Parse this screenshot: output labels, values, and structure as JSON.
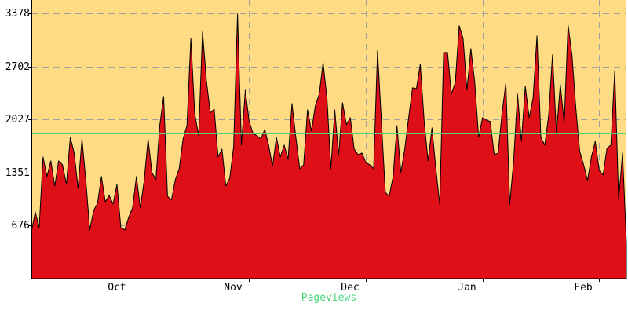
{
  "chart_data": {
    "type": "area",
    "xlabel": "Pageviews",
    "ylabel": "",
    "title": "",
    "ylim": [
      0,
      3378
    ],
    "y_ticks": [
      676,
      1351,
      2027,
      2702,
      3378
    ],
    "x_ticks": [
      "Oct",
      "Nov",
      "Dec",
      "Jan",
      "Feb"
    ],
    "x_tick_day_index": [
      26,
      56,
      86,
      116,
      146
    ],
    "reference_line": 1853,
    "grid": true,
    "colors": {
      "plot_background": "#ffdc83",
      "area_fill": "#df0f18",
      "area_outline": "#000000",
      "reference_line": "#4fd47f",
      "grid": "#a0a0a0",
      "xlabel": "#46d67c"
    },
    "series": [
      {
        "values": [
          600,
          850,
          650,
          1550,
          1300,
          1500,
          1180,
          1500,
          1450,
          1200,
          1800,
          1600,
          1150,
          1780,
          1250,
          620,
          870,
          960,
          1300,
          980,
          1060,
          950,
          1200,
          650,
          620,
          780,
          900,
          1300,
          900,
          1250,
          1780,
          1350,
          1260,
          1950,
          2320,
          1050,
          1000,
          1260,
          1400,
          1780,
          1950,
          3060,
          2100,
          1820,
          3140,
          2520,
          2110,
          2160,
          1550,
          1650,
          1180,
          1280,
          1680,
          3370,
          1700,
          2400,
          2000,
          1850,
          1820,
          1780,
          1900,
          1700,
          1430,
          1800,
          1550,
          1700,
          1520,
          2230,
          1800,
          1400,
          1450,
          2150,
          1880,
          2200,
          2350,
          2750,
          2300,
          1400,
          2150,
          1570,
          2240,
          1960,
          2050,
          1650,
          1580,
          1600,
          1480,
          1450,
          1400,
          2900,
          2000,
          1100,
          1050,
          1300,
          1950,
          1350,
          1650,
          2050,
          2430,
          2420,
          2730,
          2000,
          1500,
          1920,
          1400,
          950,
          2880,
          2880,
          2350,
          2500,
          3220,
          3060,
          2400,
          2930,
          2500,
          1800,
          2050,
          2020,
          2000,
          1580,
          1600,
          2100,
          2490,
          950,
          1500,
          2350,
          1750,
          2450,
          2050,
          2300,
          3090,
          1800,
          1700,
          2080,
          2850,
          1850,
          2470,
          1980,
          3230,
          2850,
          2170,
          1620,
          1450,
          1250,
          1550,
          1750,
          1380,
          1320,
          1660,
          1700,
          2650,
          1000,
          1600,
          450
        ]
      }
    ]
  }
}
